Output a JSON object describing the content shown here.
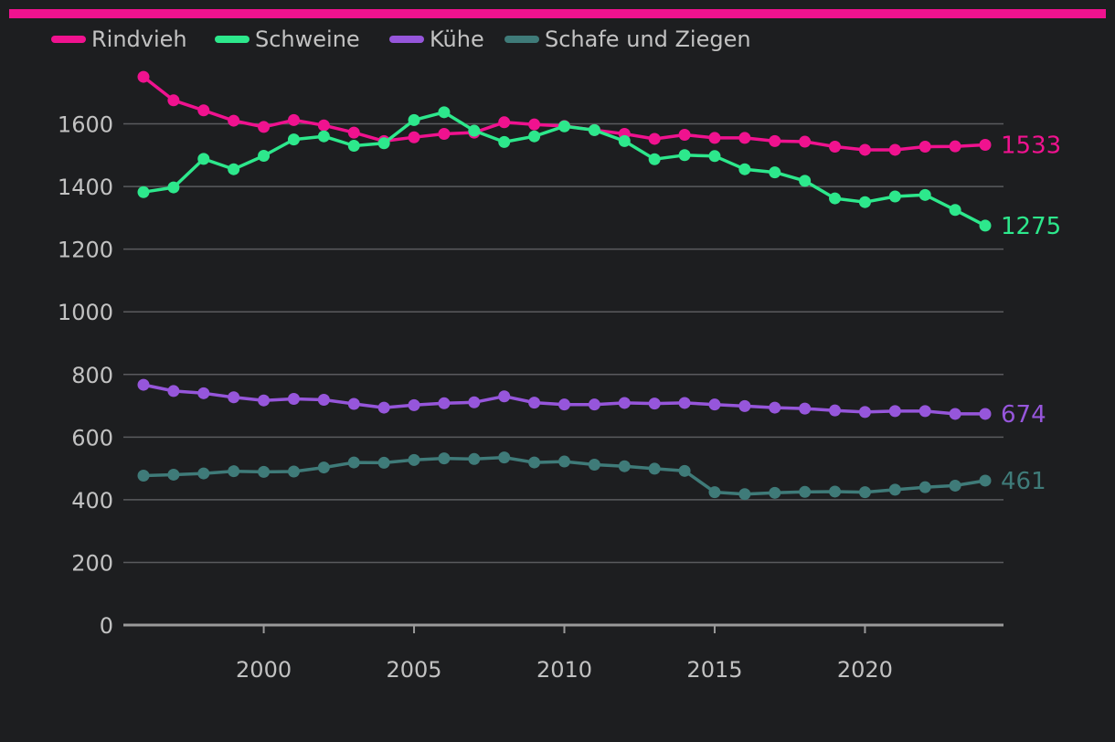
{
  "colors": {
    "background": "#1d1e20",
    "accent_bar": "#f0128f",
    "grid": "#5a5b5e",
    "axis": "#9a9a9a",
    "text": "#c2c2c2"
  },
  "chart_data": {
    "type": "line",
    "title": "",
    "xlabel": "",
    "ylabel": "",
    "xlim": [
      1996,
      2024
    ],
    "ylim": [
      0,
      1750
    ],
    "x_ticks": [
      2000,
      2005,
      2010,
      2015,
      2020
    ],
    "y_ticks": [
      0,
      200,
      400,
      600,
      800,
      1000,
      1200,
      1400,
      1600
    ],
    "grid": true,
    "legend_position": "top-left",
    "x": [
      1996,
      1997,
      1998,
      1999,
      2000,
      2001,
      2002,
      2003,
      2004,
      2005,
      2006,
      2007,
      2008,
      2009,
      2010,
      2011,
      2012,
      2013,
      2014,
      2015,
      2016,
      2017,
      2018,
      2019,
      2020,
      2021,
      2022,
      2023,
      2024
    ],
    "series": [
      {
        "name": "Rindvieh",
        "color": "#f0128f",
        "end_label": "1533",
        "values": [
          1750,
          1675,
          1643,
          1610,
          1590,
          1612,
          1595,
          1572,
          1545,
          1557,
          1568,
          1572,
          1605,
          1598,
          1593,
          1580,
          1568,
          1552,
          1565,
          1555,
          1555,
          1545,
          1543,
          1527,
          1517,
          1517,
          1527,
          1528,
          1533
        ]
      },
      {
        "name": "Schweine",
        "color": "#2de88c",
        "end_label": "1275",
        "values": [
          1382,
          1397,
          1488,
          1455,
          1498,
          1550,
          1560,
          1530,
          1538,
          1612,
          1637,
          1578,
          1542,
          1560,
          1592,
          1580,
          1545,
          1487,
          1500,
          1497,
          1455,
          1445,
          1418,
          1362,
          1350,
          1368,
          1373,
          1325,
          1275
        ]
      },
      {
        "name": "Kühe",
        "color": "#9656db",
        "end_label": "674",
        "values": [
          767,
          747,
          740,
          727,
          717,
          722,
          719,
          706,
          694,
          702,
          708,
          711,
          730,
          710,
          704,
          704,
          709,
          707,
          709,
          704,
          699,
          694,
          691,
          685,
          680,
          683,
          683,
          674,
          674
        ]
      },
      {
        "name": "Schafe und Ziegen",
        "color": "#3f7b79",
        "end_label": "461",
        "values": [
          477,
          480,
          484,
          491,
          489,
          490,
          503,
          519,
          518,
          527,
          532,
          530,
          535,
          519,
          522,
          512,
          507,
          499,
          492,
          424,
          418,
          422,
          425,
          426,
          424,
          432,
          440,
          445,
          461
        ]
      }
    ]
  }
}
